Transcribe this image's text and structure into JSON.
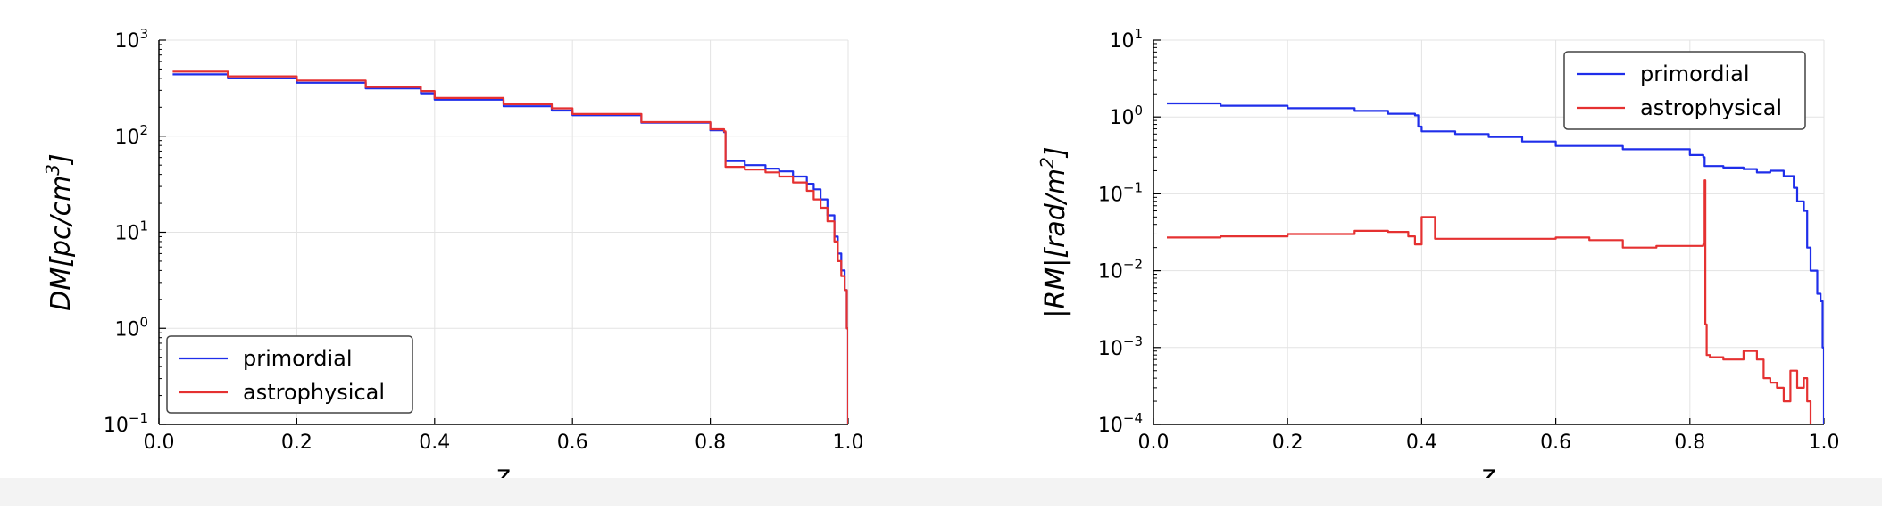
{
  "chart_data": [
    {
      "type": "line",
      "scale_y": "log",
      "xlabel": "z",
      "ylabel_html_plain": "DM[pc/cm^3]",
      "ylabel": {
        "base": "DM[pc/cm",
        "sup": "3",
        "close": "]"
      },
      "xlim": [
        0.0,
        1.0
      ],
      "ylim_log10": [
        -1,
        3
      ],
      "xticks": [
        "0.0",
        "0.2",
        "0.4",
        "0.6",
        "0.8",
        "1.0"
      ],
      "yticks": [
        {
          "base": "10",
          "exp": "-1"
        },
        {
          "base": "10",
          "exp": "0"
        },
        {
          "base": "10",
          "exp": "1"
        },
        {
          "base": "10",
          "exp": "2"
        },
        {
          "base": "10",
          "exp": "3"
        }
      ],
      "grid": true,
      "legend_placement": "bottom-left",
      "series": [
        {
          "name": "primordial",
          "color": "#1f2eea",
          "x": [
            0.02,
            0.1,
            0.2,
            0.3,
            0.38,
            0.4,
            0.5,
            0.57,
            0.6,
            0.7,
            0.8,
            0.82,
            0.822,
            0.85,
            0.88,
            0.9,
            0.92,
            0.94,
            0.95,
            0.96,
            0.97,
            0.98,
            0.985,
            0.99,
            0.995,
            0.998,
            1.0
          ],
          "y": [
            440,
            400,
            360,
            315,
            280,
            240,
            205,
            185,
            165,
            138,
            115,
            110,
            55,
            50,
            46,
            43,
            38,
            32,
            28,
            22,
            15,
            9,
            6,
            4,
            2.5,
            1.0,
            0.1
          ]
        },
        {
          "name": "astrophysical",
          "color": "#e53131",
          "x": [
            0.02,
            0.1,
            0.2,
            0.3,
            0.38,
            0.4,
            0.5,
            0.57,
            0.6,
            0.7,
            0.8,
            0.82,
            0.822,
            0.85,
            0.88,
            0.9,
            0.92,
            0.94,
            0.95,
            0.96,
            0.97,
            0.98,
            0.985,
            0.99,
            0.995,
            0.998,
            1.0
          ],
          "y": [
            470,
            420,
            380,
            325,
            295,
            250,
            215,
            195,
            170,
            140,
            118,
            112,
            48,
            45,
            42,
            38,
            33,
            27,
            22,
            18,
            13,
            8,
            5,
            3.5,
            2.5,
            1.0,
            0.1
          ]
        }
      ]
    },
    {
      "type": "line",
      "scale_y": "log",
      "xlabel": "z",
      "ylabel_html_plain": "|RM|[rad/m^2]",
      "ylabel": {
        "base": "|RM|[rad/m",
        "sup": "2",
        "close": "]"
      },
      "xlim": [
        0.0,
        1.0
      ],
      "ylim_log10": [
        -4,
        1
      ],
      "xticks": [
        "0.0",
        "0.2",
        "0.4",
        "0.6",
        "0.8",
        "1.0"
      ],
      "yticks": [
        {
          "base": "10",
          "exp": "-4"
        },
        {
          "base": "10",
          "exp": "-3"
        },
        {
          "base": "10",
          "exp": "-2"
        },
        {
          "base": "10",
          "exp": "-1"
        },
        {
          "base": "10",
          "exp": "0"
        },
        {
          "base": "10",
          "exp": "1"
        }
      ],
      "grid": true,
      "legend_placement": "top-right",
      "series": [
        {
          "name": "primordial",
          "color": "#1f2eea",
          "x": [
            0.02,
            0.1,
            0.2,
            0.3,
            0.35,
            0.39,
            0.395,
            0.4,
            0.45,
            0.5,
            0.55,
            0.6,
            0.7,
            0.8,
            0.82,
            0.822,
            0.85,
            0.88,
            0.9,
            0.92,
            0.94,
            0.955,
            0.96,
            0.97,
            0.975,
            0.98,
            0.99,
            0.995,
            0.998,
            1.0
          ],
          "y": [
            1.5,
            1.4,
            1.3,
            1.2,
            1.1,
            1.05,
            0.75,
            0.65,
            0.6,
            0.55,
            0.48,
            0.42,
            0.38,
            0.32,
            0.3,
            0.23,
            0.22,
            0.21,
            0.19,
            0.2,
            0.17,
            0.12,
            0.08,
            0.06,
            0.02,
            0.01,
            0.005,
            0.004,
            0.001,
            0.0001
          ]
        },
        {
          "name": "astrophysical",
          "color": "#e53131",
          "x": [
            0.02,
            0.1,
            0.2,
            0.3,
            0.35,
            0.38,
            0.39,
            0.4,
            0.42,
            0.5,
            0.6,
            0.65,
            0.7,
            0.75,
            0.8,
            0.82,
            0.822,
            0.823,
            0.825,
            0.83,
            0.85,
            0.87,
            0.88,
            0.9,
            0.91,
            0.92,
            0.93,
            0.94,
            0.95,
            0.96,
            0.97,
            0.975,
            0.98
          ],
          "y": [
            0.027,
            0.028,
            0.03,
            0.033,
            0.032,
            0.028,
            0.022,
            0.05,
            0.026,
            0.026,
            0.027,
            0.025,
            0.02,
            0.021,
            0.021,
            0.022,
            0.15,
            0.002,
            0.0008,
            0.00075,
            0.0007,
            0.0007,
            0.0009,
            0.0007,
            0.0004,
            0.00035,
            0.0003,
            0.0002,
            0.0005,
            0.0003,
            0.0004,
            0.0002,
            0.0001
          ]
        }
      ]
    }
  ]
}
